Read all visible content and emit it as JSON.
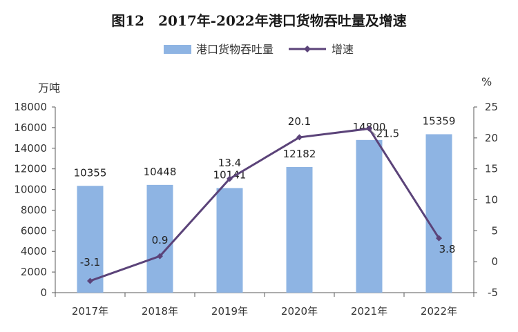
{
  "chart_data": {
    "type": "bar",
    "title": "图12　2017年-2022年港口货物吞吐量及增速",
    "categories": [
      "2017年",
      "2018年",
      "2019年",
      "2020年",
      "2021年",
      "2022年"
    ],
    "series": [
      {
        "name": "港口货物吞吐量",
        "kind": "bar",
        "axis": "left",
        "values": [
          10355,
          10448,
          10141,
          12182,
          14800,
          15359
        ],
        "color": "#8eb4e3"
      },
      {
        "name": "增速",
        "kind": "line",
        "axis": "right",
        "values": [
          -3.1,
          0.9,
          13.4,
          20.1,
          21.5,
          3.8
        ],
        "color": "#5b4379"
      }
    ],
    "left_axis": {
      "unit": "万吨",
      "ylim": [
        0,
        18000
      ],
      "ticks": [
        0,
        2000,
        4000,
        6000,
        8000,
        10000,
        12000,
        14000,
        16000,
        18000
      ]
    },
    "right_axis": {
      "unit": "%",
      "ylim": [
        -5,
        25
      ],
      "ticks": [
        -5,
        0,
        5,
        10,
        15,
        20,
        25
      ]
    },
    "bar_labels": [
      "10355",
      "10448",
      "10141",
      "12182",
      "14800",
      "15359"
    ],
    "line_labels": [
      "-3.1",
      "0.9",
      "13.4",
      "20.1",
      "21.5",
      "3.8"
    ],
    "legend_position": "top-center",
    "grid": false
  }
}
